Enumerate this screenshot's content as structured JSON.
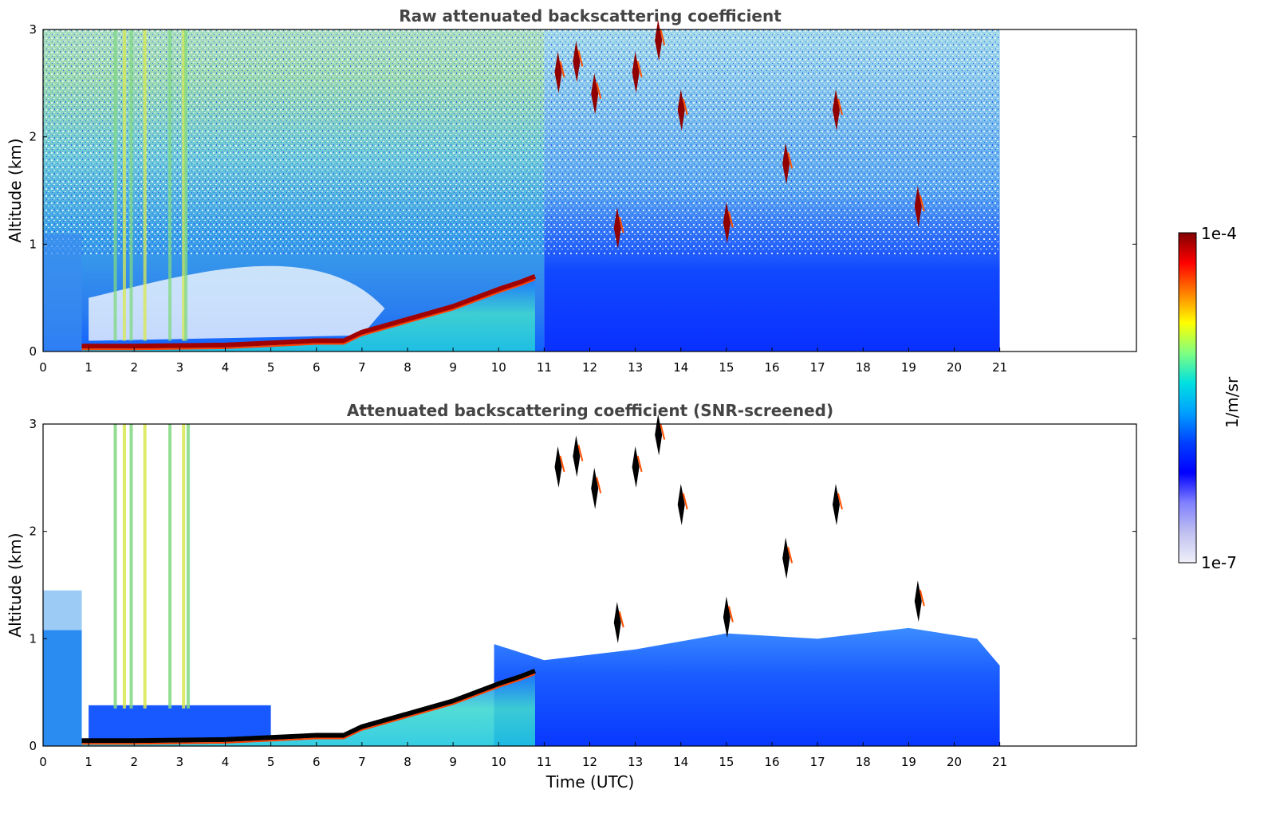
{
  "chart_data": [
    {
      "type": "heatmap",
      "title": "Raw attenuated backscattering coefficient",
      "xlabel": "",
      "ylabel": "Altitude (km)",
      "xlim": [
        0,
        24
      ],
      "ylim": [
        0,
        3
      ],
      "xticks": [
        "0",
        "1",
        "2",
        "3",
        "4",
        "5",
        "6",
        "7",
        "8",
        "9",
        "10",
        "11",
        "12",
        "13",
        "14",
        "15",
        "16",
        "17",
        "18",
        "19",
        "20",
        "21"
      ],
      "yticks": [
        "0",
        "1",
        "2",
        "3"
      ],
      "data_end_time": 21,
      "grid": false,
      "layers": [
        {
          "feature": "boundary-layer aerosol top",
          "times": [
            0.85,
            2,
            4,
            5,
            6,
            6.6,
            7,
            8,
            9,
            9.5,
            10,
            10.5,
            10.8
          ],
          "altitudes": [
            0.05,
            0.05,
            0.06,
            0.08,
            0.1,
            0.1,
            0.18,
            0.3,
            0.42,
            0.5,
            0.58,
            0.65,
            0.7
          ]
        },
        {
          "feature": "elevated clouds",
          "times": [
            11.3,
            11.7,
            12.1,
            12.6,
            13.0,
            13.5,
            14.0,
            15.0,
            16.3,
            17.4,
            19.2
          ],
          "altitudes": [
            2.6,
            2.7,
            2.4,
            1.15,
            2.6,
            2.9,
            2.25,
            1.2,
            1.75,
            2.25,
            1.35
          ]
        }
      ]
    },
    {
      "type": "heatmap",
      "title": "Attenuated backscattering coefficient (SNR-screened)",
      "xlabel": "Time (UTC)",
      "ylabel": "Altitude (km)",
      "xlim": [
        0,
        24
      ],
      "ylim": [
        0,
        3
      ],
      "xticks": [
        "0",
        "1",
        "2",
        "3",
        "4",
        "5",
        "6",
        "7",
        "8",
        "9",
        "10",
        "11",
        "12",
        "13",
        "14",
        "15",
        "16",
        "17",
        "18",
        "19",
        "20",
        "21"
      ],
      "yticks": [
        "0",
        "1",
        "2",
        "3"
      ],
      "data_end_time": 21,
      "grid": false
    }
  ],
  "colorbar": {
    "min_label": "1e-7",
    "max_label": "1e-4",
    "label": "1/m/sr",
    "colormap": [
      "#f0f0fa",
      "#c0c0f0",
      "#8080ff",
      "#0000ff",
      "#0040ff",
      "#00a0ff",
      "#00e0e0",
      "#80ff80",
      "#ffff00",
      "#ff8000",
      "#ff0000",
      "#800000"
    ]
  }
}
